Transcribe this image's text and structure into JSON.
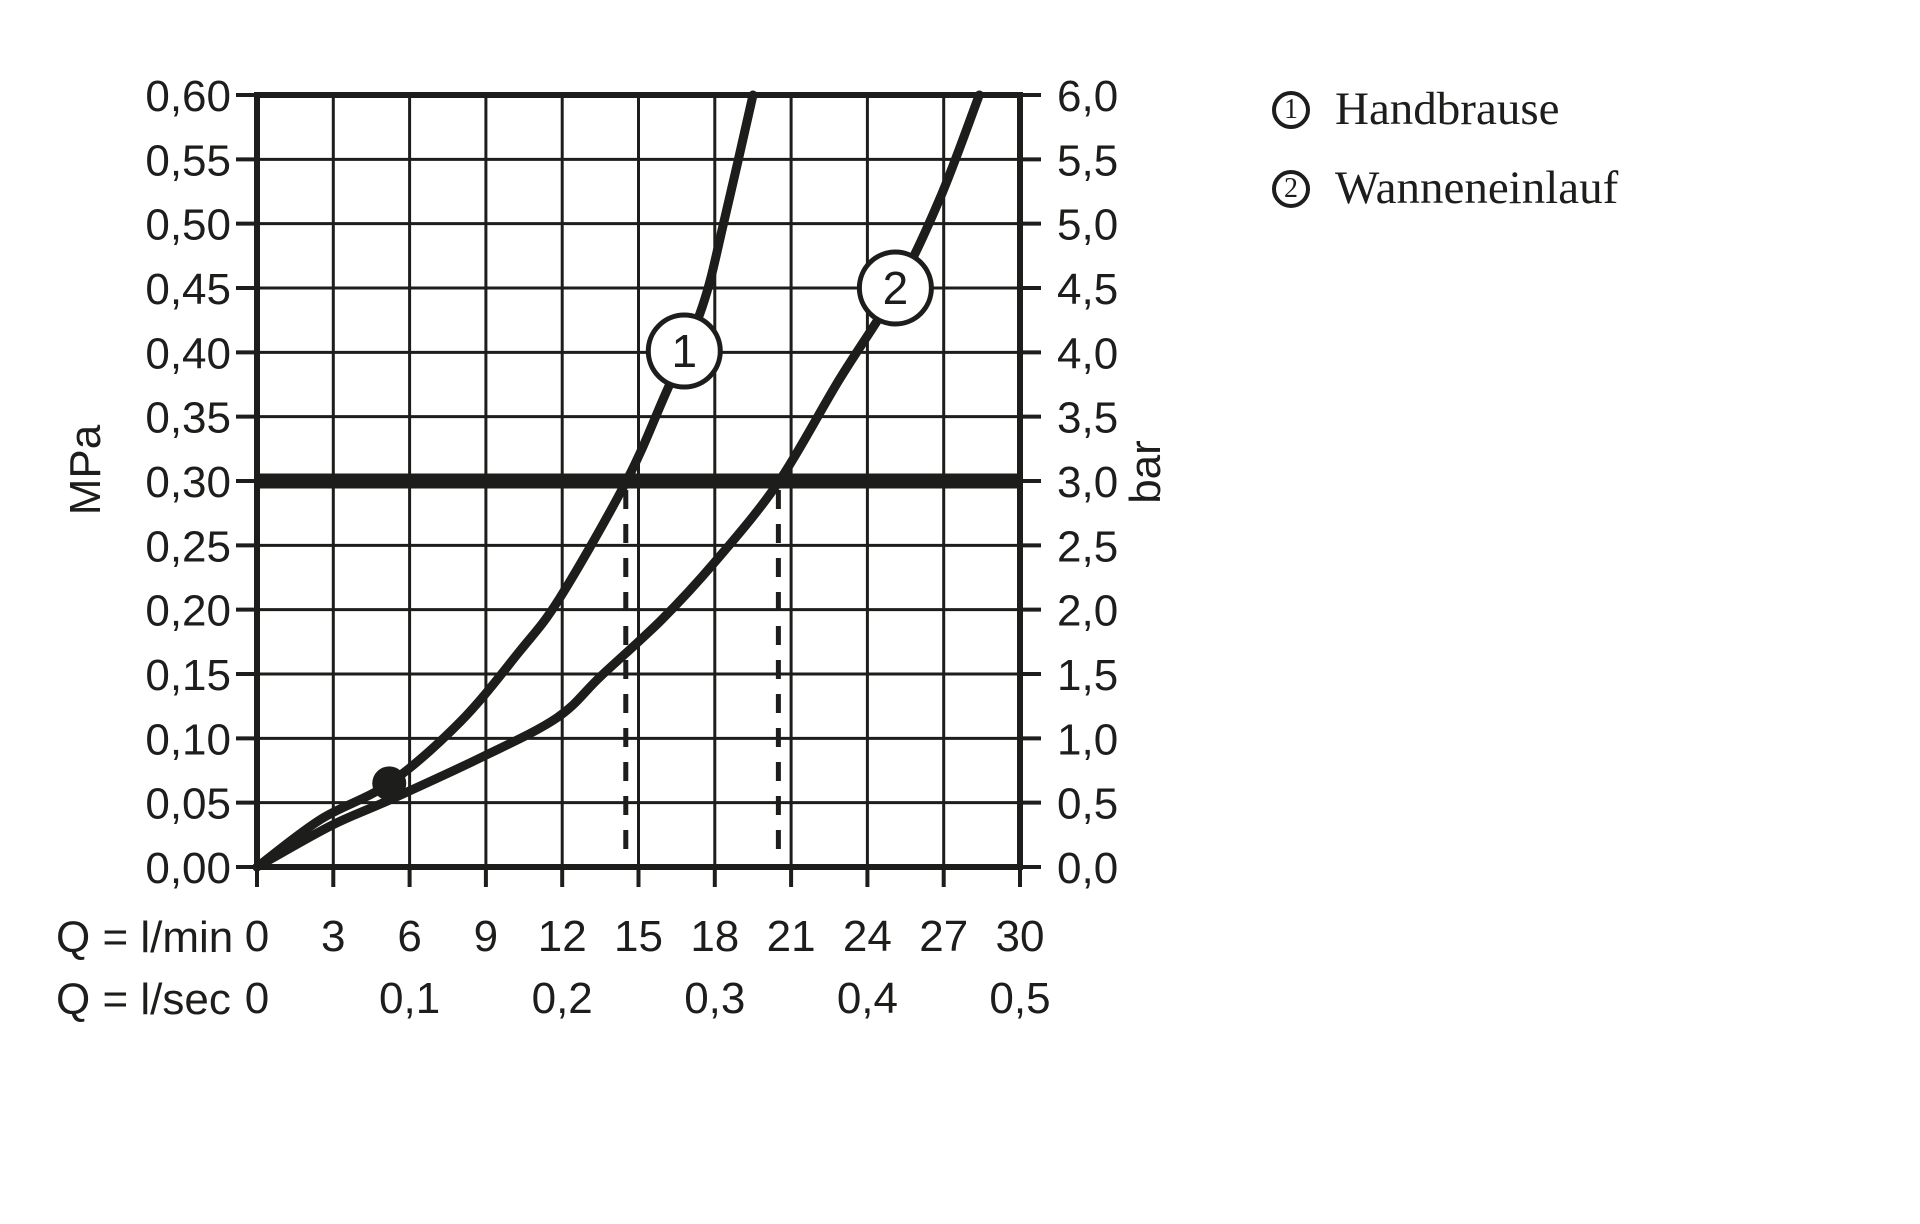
{
  "colors": {
    "ink": "#1d1d1b",
    "background": "#ffffff"
  },
  "legend": {
    "items": [
      {
        "symbol": "1",
        "label": "Handbrause"
      },
      {
        "symbol": "2",
        "label": "Wanneneinlauf"
      }
    ]
  },
  "chart_data": {
    "type": "line",
    "title": "",
    "grid": {
      "x_step_lmin": 3,
      "y_step_mpa": 0.05,
      "grid_on": true
    },
    "x_axis": {
      "row1_label": "Q = l/min",
      "row2_label": "Q = l/sec",
      "range_lmin": [
        0,
        30
      ],
      "lmin_ticks": [
        {
          "q": 0,
          "label": "0"
        },
        {
          "q": 3,
          "label": "3"
        },
        {
          "q": 6,
          "label": "6"
        },
        {
          "q": 9,
          "label": "9"
        },
        {
          "q": 12,
          "label": "12"
        },
        {
          "q": 15,
          "label": "15"
        },
        {
          "q": 18,
          "label": "18"
        },
        {
          "q": 21,
          "label": "21"
        },
        {
          "q": 24,
          "label": "24"
        },
        {
          "q": 27,
          "label": "27"
        },
        {
          "q": 30,
          "label": "30"
        }
      ],
      "lsec_ticks": [
        {
          "q": 0,
          "label": "0"
        },
        {
          "q": 6,
          "label": "0,1"
        },
        {
          "q": 12,
          "label": "0,2"
        },
        {
          "q": 18,
          "label": "0,3"
        },
        {
          "q": 24,
          "label": "0,4"
        },
        {
          "q": 30,
          "label": "0,5"
        }
      ]
    },
    "y_axis_left": {
      "label": "MPa",
      "range_mpa": [
        0,
        0.6
      ],
      "ticks": [
        {
          "p": 0.6,
          "label": "0,60"
        },
        {
          "p": 0.55,
          "label": "0,55"
        },
        {
          "p": 0.5,
          "label": "0,50"
        },
        {
          "p": 0.45,
          "label": "0,45"
        },
        {
          "p": 0.4,
          "label": "0,40"
        },
        {
          "p": 0.35,
          "label": "0,35"
        },
        {
          "p": 0.3,
          "label": "0,30"
        },
        {
          "p": 0.25,
          "label": "0,25"
        },
        {
          "p": 0.2,
          "label": "0,20"
        },
        {
          "p": 0.15,
          "label": "0,15"
        },
        {
          "p": 0.1,
          "label": "0,10"
        },
        {
          "p": 0.05,
          "label": "0,05"
        },
        {
          "p": 0.0,
          "label": "0,00"
        }
      ]
    },
    "y_axis_right": {
      "label": "bar",
      "range_bar": [
        0,
        6
      ],
      "ticks": [
        {
          "p": 0.6,
          "label": "6,0"
        },
        {
          "p": 0.55,
          "label": "5,5"
        },
        {
          "p": 0.5,
          "label": "5,0"
        },
        {
          "p": 0.45,
          "label": "4,5"
        },
        {
          "p": 0.4,
          "label": "4,0"
        },
        {
          "p": 0.35,
          "label": "3,5"
        },
        {
          "p": 0.3,
          "label": "3,0"
        },
        {
          "p": 0.25,
          "label": "2,5"
        },
        {
          "p": 0.2,
          "label": "2,0"
        },
        {
          "p": 0.15,
          "label": "1,5"
        },
        {
          "p": 0.1,
          "label": "1,0"
        },
        {
          "p": 0.05,
          "label": "0,5"
        },
        {
          "p": 0.0,
          "label": "0,0"
        }
      ]
    },
    "reference_line": {
      "p_mpa": 0.3,
      "bar": 3.0
    },
    "dashed_guides_lmin": [
      14.5,
      20.5
    ],
    "operating_point": {
      "q_lmin": 5.2,
      "p_mpa": 0.065
    },
    "series": [
      {
        "id": "1",
        "name": "Handbrause",
        "marker_pos": {
          "q": 16.8,
          "p": 0.401
        },
        "points": [
          [
            0,
            0
          ],
          [
            2.5,
            0.037
          ],
          [
            5.2,
            0.065
          ],
          [
            8.0,
            0.113
          ],
          [
            10.3,
            0.167
          ],
          [
            11.9,
            0.209
          ],
          [
            14.5,
            0.299
          ],
          [
            16.0,
            0.365
          ],
          [
            17.5,
            0.435
          ],
          [
            18.4,
            0.505
          ],
          [
            19.5,
            0.6
          ]
        ]
      },
      {
        "id": "2",
        "name": "Wanneneinlauf",
        "marker_pos": {
          "q": 25.1,
          "p": 0.45
        },
        "points": [
          [
            0,
            0
          ],
          [
            2.9,
            0.032
          ],
          [
            5.2,
            0.052
          ],
          [
            8.8,
            0.085
          ],
          [
            11.8,
            0.116
          ],
          [
            13.5,
            0.148
          ],
          [
            15.9,
            0.192
          ],
          [
            18.0,
            0.237
          ],
          [
            20.5,
            0.299
          ],
          [
            22.9,
            0.379
          ],
          [
            25.2,
            0.451
          ],
          [
            26.9,
            0.522
          ],
          [
            28.4,
            0.6
          ]
        ]
      }
    ]
  }
}
